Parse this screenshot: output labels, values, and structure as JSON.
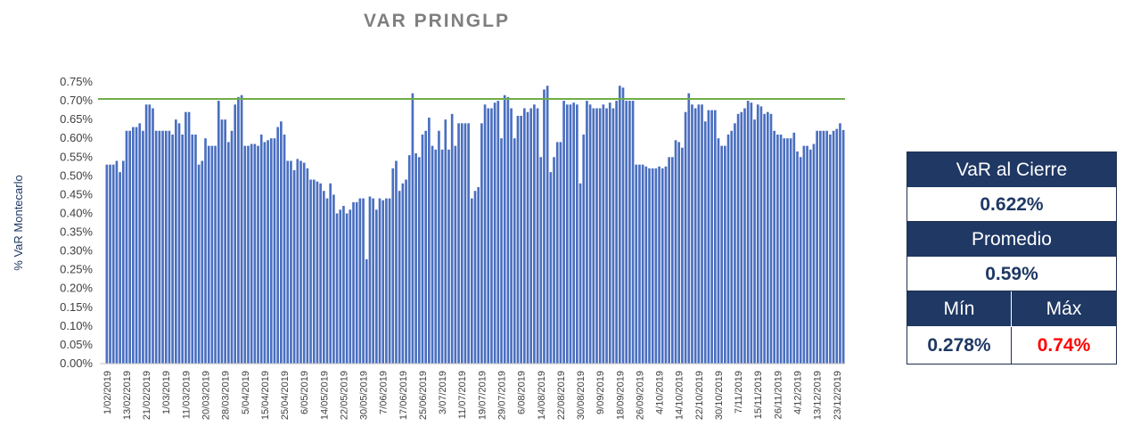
{
  "chart_data": {
    "type": "bar",
    "title": "VAR PRINGLP",
    "y_label": "% VaR Montecarlo",
    "color": "#4a6fc0",
    "categories": [
      "1/02/2019",
      null,
      null,
      null,
      null,
      null,
      "13/02/2019",
      null,
      null,
      null,
      null,
      null,
      "21/02/2019",
      null,
      null,
      null,
      null,
      null,
      "1/03/2019",
      null,
      null,
      null,
      null,
      null,
      "11/03/2019",
      null,
      null,
      null,
      null,
      null,
      "20/03/2019",
      null,
      null,
      null,
      null,
      null,
      "28/03/2019",
      null,
      null,
      null,
      null,
      null,
      "5/04/2019",
      null,
      null,
      null,
      null,
      null,
      "15/04/2019",
      null,
      null,
      null,
      null,
      null,
      "25/04/2019",
      null,
      null,
      null,
      null,
      null,
      "6/05/2019",
      null,
      null,
      null,
      null,
      null,
      "14/05/2019",
      null,
      null,
      null,
      null,
      null,
      "22/05/2019",
      null,
      null,
      null,
      null,
      null,
      "30/05/2019",
      null,
      null,
      null,
      null,
      null,
      "7/06/2019",
      null,
      null,
      null,
      null,
      null,
      "17/06/2019",
      null,
      null,
      null,
      null,
      null,
      "25/06/2019",
      null,
      null,
      null,
      null,
      null,
      "3/07/2019",
      null,
      null,
      null,
      null,
      null,
      "11/07/2019",
      null,
      null,
      null,
      null,
      null,
      "19/07/2019",
      null,
      null,
      null,
      null,
      null,
      "29/07/2019",
      null,
      null,
      null,
      null,
      null,
      "6/08/2019",
      null,
      null,
      null,
      null,
      null,
      "14/08/2019",
      null,
      null,
      null,
      null,
      null,
      "22/08/2019",
      null,
      null,
      null,
      null,
      null,
      "30/08/2019",
      null,
      null,
      null,
      null,
      null,
      "9/09/2019",
      null,
      null,
      null,
      null,
      null,
      "18/09/2019",
      null,
      null,
      null,
      null,
      null,
      "26/09/2019",
      null,
      null,
      null,
      null,
      null,
      "4/10/2019",
      null,
      null,
      null,
      null,
      null,
      "14/10/2019",
      null,
      null,
      null,
      null,
      null,
      "22/10/2019",
      null,
      null,
      null,
      null,
      null,
      "30/10/2019",
      null,
      null,
      null,
      null,
      null,
      "7/11/2019",
      null,
      null,
      null,
      null,
      null,
      "15/11/2019",
      null,
      null,
      null,
      null,
      null,
      "26/11/2019",
      null,
      null,
      null,
      null,
      null,
      "4/12/2019",
      null,
      null,
      null,
      null,
      null,
      "13/12/2019",
      null,
      null,
      null,
      null,
      null,
      "23/12/2019",
      null,
      null
    ],
    "values": [
      0.53,
      0.53,
      0.53,
      0.54,
      0.51,
      0.54,
      0.62,
      0.62,
      0.63,
      0.63,
      0.64,
      0.62,
      0.69,
      0.69,
      0.68,
      0.62,
      0.62,
      0.62,
      0.62,
      0.62,
      0.61,
      0.65,
      0.64,
      0.61,
      0.67,
      0.67,
      0.61,
      0.61,
      0.53,
      0.54,
      0.6,
      0.58,
      0.58,
      0.58,
      0.7,
      0.65,
      0.65,
      0.59,
      0.62,
      0.69,
      0.71,
      0.715,
      0.58,
      0.58,
      0.585,
      0.585,
      0.58,
      0.61,
      0.59,
      0.595,
      0.6,
      0.6,
      0.63,
      0.645,
      0.61,
      0.54,
      0.54,
      0.515,
      0.545,
      0.54,
      0.535,
      0.52,
      0.49,
      0.49,
      0.485,
      0.48,
      0.46,
      0.44,
      0.48,
      0.45,
      0.4,
      0.41,
      0.42,
      0.4,
      0.41,
      0.43,
      0.43,
      0.44,
      0.44,
      0.278,
      0.445,
      0.44,
      0.41,
      0.44,
      0.435,
      0.44,
      0.44,
      0.52,
      0.54,
      0.46,
      0.48,
      0.49,
      0.555,
      0.72,
      0.56,
      0.55,
      0.61,
      0.62,
      0.655,
      0.58,
      0.57,
      0.62,
      0.57,
      0.65,
      0.57,
      0.665,
      0.58,
      0.64,
      0.64,
      0.64,
      0.64,
      0.44,
      0.46,
      0.47,
      0.64,
      0.69,
      0.68,
      0.68,
      0.695,
      0.7,
      0.6,
      0.715,
      0.71,
      0.68,
      0.6,
      0.66,
      0.66,
      0.68,
      0.67,
      0.68,
      0.69,
      0.68,
      0.55,
      0.73,
      0.74,
      0.51,
      0.55,
      0.59,
      0.59,
      0.7,
      0.69,
      0.69,
      0.695,
      0.69,
      0.48,
      0.61,
      0.7,
      0.69,
      0.68,
      0.68,
      0.68,
      0.69,
      0.68,
      0.695,
      0.68,
      0.7,
      0.74,
      0.735,
      0.7,
      0.7,
      0.7,
      0.53,
      0.53,
      0.53,
      0.525,
      0.52,
      0.52,
      0.52,
      0.525,
      0.52,
      0.525,
      0.55,
      0.55,
      0.595,
      0.59,
      0.575,
      0.67,
      0.72,
      0.69,
      0.68,
      0.69,
      0.69,
      0.645,
      0.675,
      0.675,
      0.675,
      0.6,
      0.58,
      0.58,
      0.61,
      0.62,
      0.64,
      0.665,
      0.67,
      0.68,
      0.7,
      0.695,
      0.65,
      0.69,
      0.685,
      0.665,
      0.67,
      0.665,
      0.62,
      0.61,
      0.61,
      0.6,
      0.6,
      0.6,
      0.615,
      0.565,
      0.55,
      0.58,
      0.58,
      0.57,
      0.585,
      0.62,
      0.62,
      0.62,
      0.62,
      0.61,
      0.62,
      0.625,
      0.64,
      0.622
    ],
    "reference_line": {
      "value": 0.705,
      "color": "#70ad47"
    },
    "ylim": [
      0,
      0.75
    ],
    "yticks": [
      {
        "value": 0,
        "label": "0.00%"
      },
      {
        "value": 0.05,
        "label": "0.05%"
      },
      {
        "value": 0.1,
        "label": "0.10%"
      },
      {
        "value": 0.15,
        "label": "0.15%"
      },
      {
        "value": 0.2,
        "label": "0.20%"
      },
      {
        "value": 0.25,
        "label": "0.25%"
      },
      {
        "value": 0.3,
        "label": "0.30%"
      },
      {
        "value": 0.35,
        "label": "0.35%"
      },
      {
        "value": 0.4,
        "label": "0.40%"
      },
      {
        "value": 0.45,
        "label": "0.45%"
      },
      {
        "value": 0.5,
        "label": "0.50%"
      },
      {
        "value": 0.55,
        "label": "0.55%"
      },
      {
        "value": 0.6,
        "label": "0.60%"
      },
      {
        "value": 0.65,
        "label": "0.65%"
      },
      {
        "value": 0.7,
        "label": "0.70%"
      },
      {
        "value": 0.75,
        "label": "0.75%"
      }
    ],
    "grid": false
  },
  "summary": {
    "close_label": "VaR al Cierre",
    "close_value": "0.622%",
    "avg_label": "Promedio",
    "avg_value": "0.59%",
    "min_label": "Mín",
    "max_label": "Máx",
    "min_value": "0.278%",
    "max_value": "0.74%"
  }
}
